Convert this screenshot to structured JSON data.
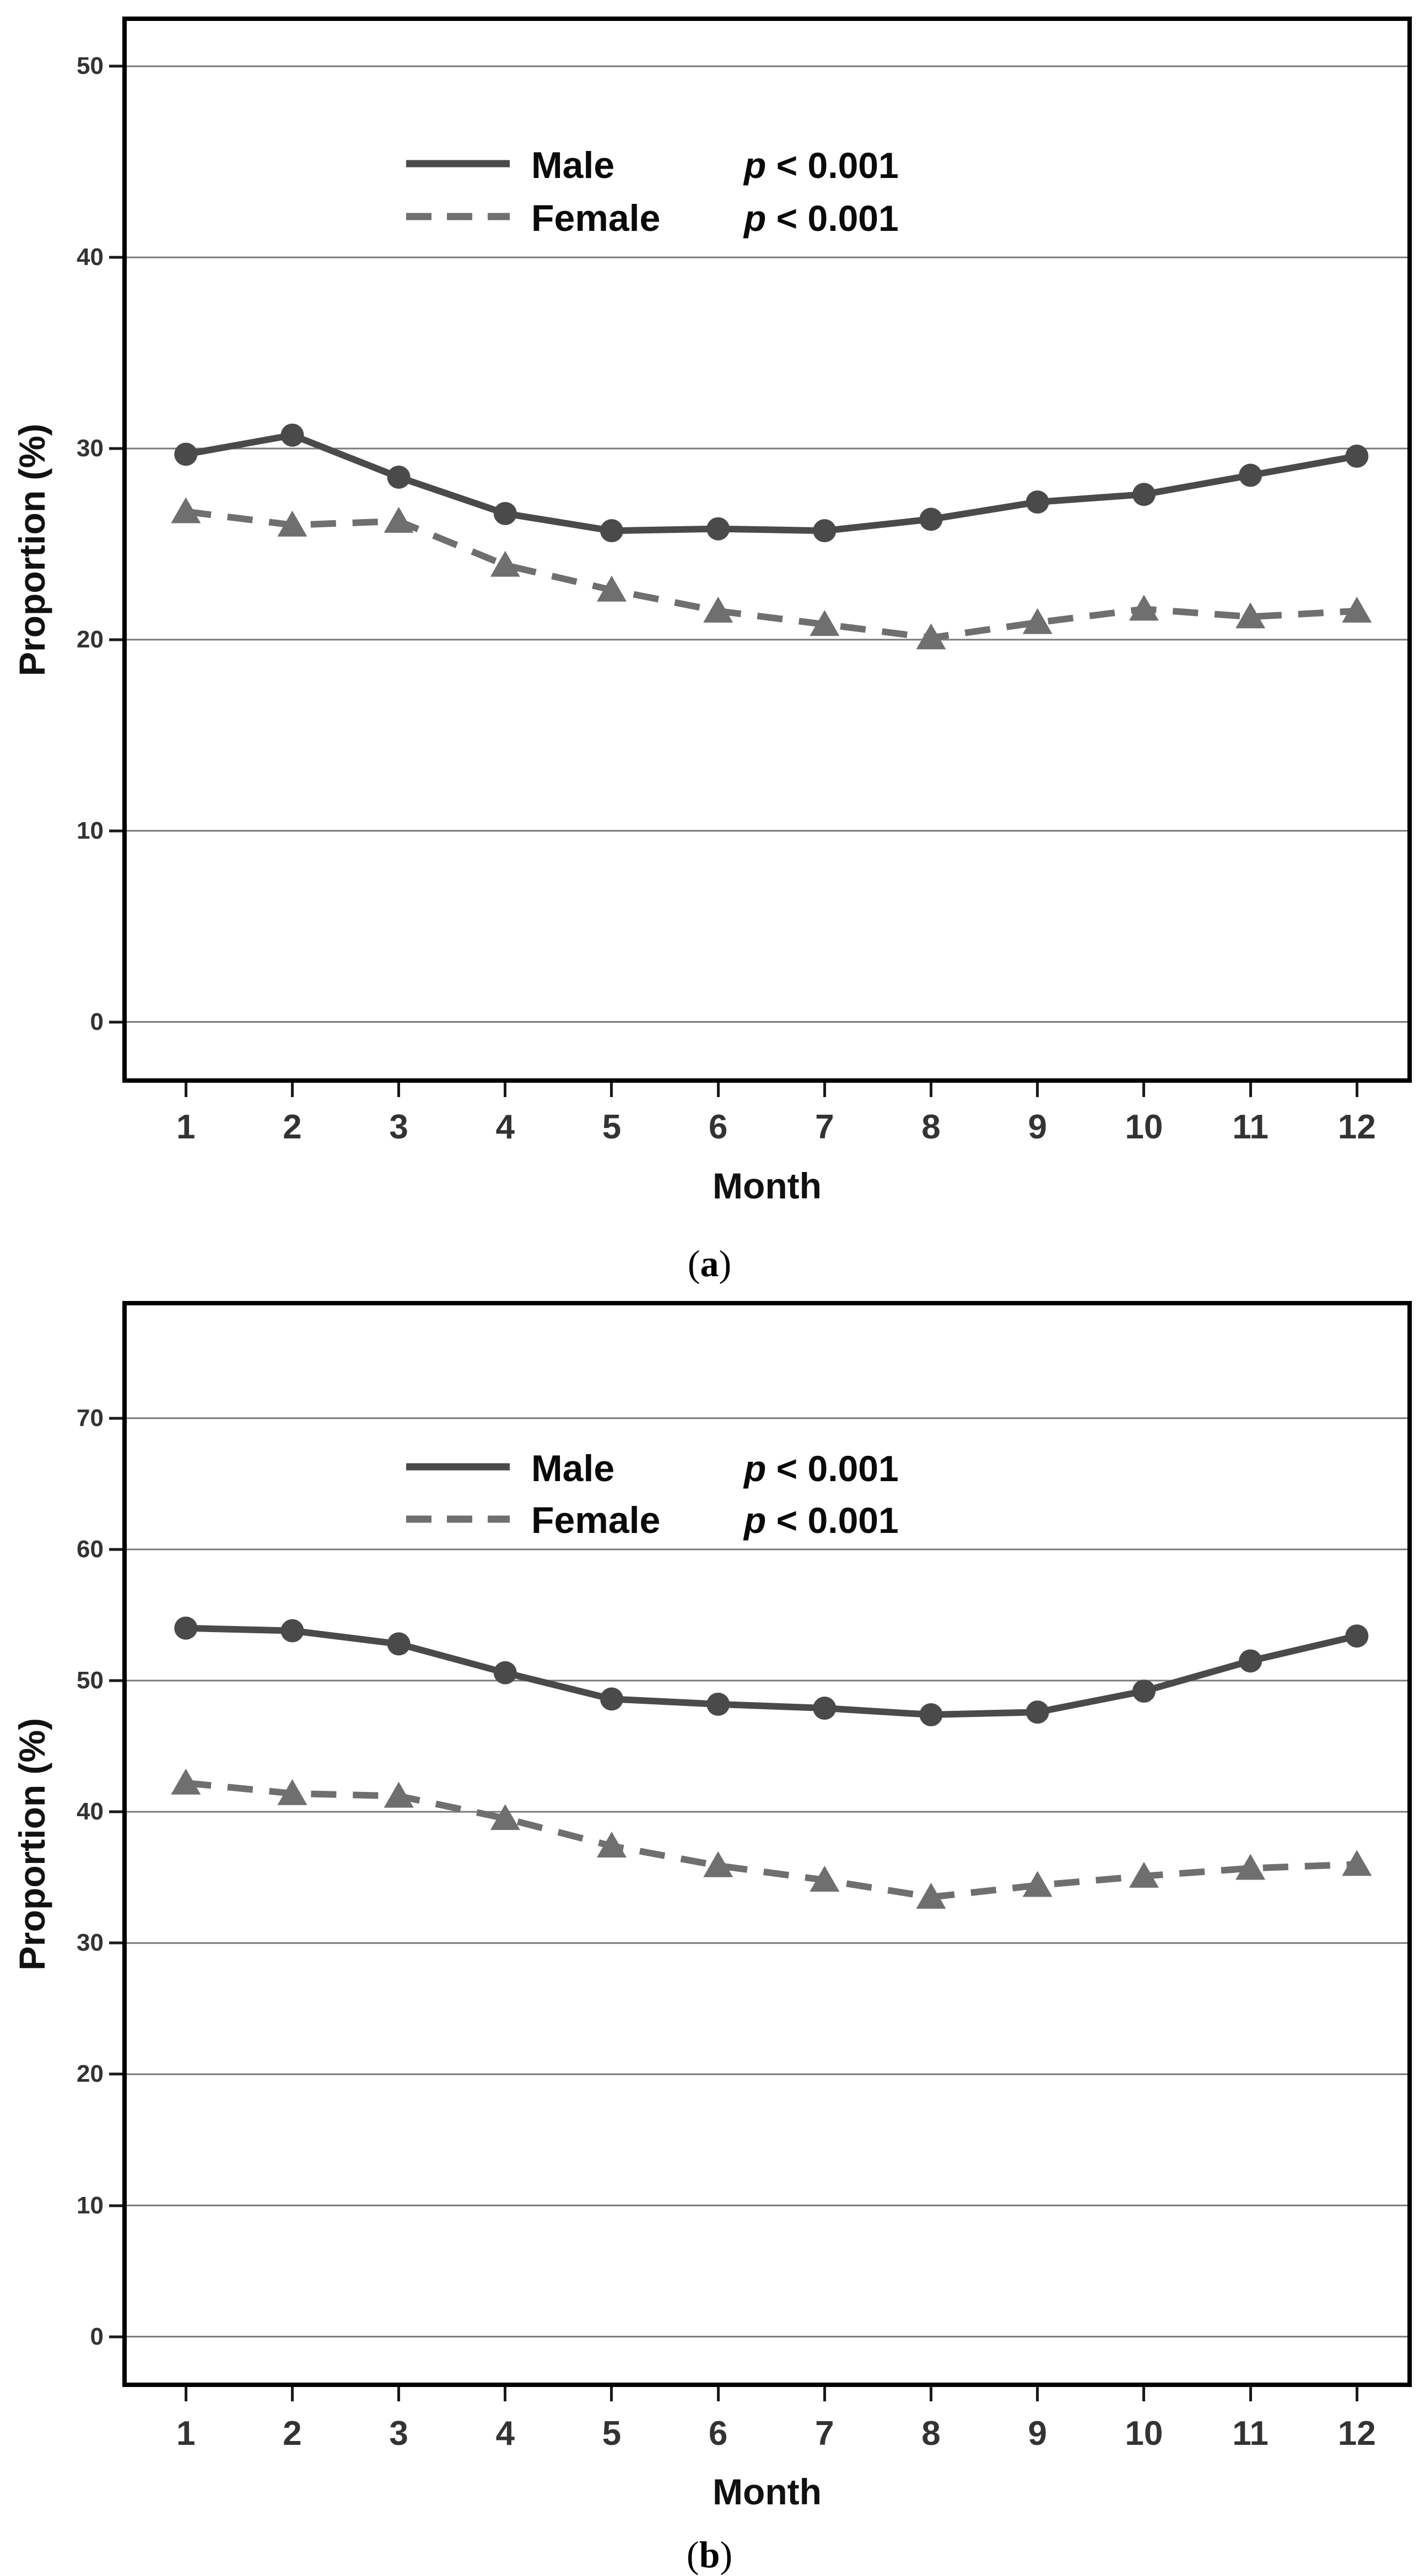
{
  "figure": {
    "description": "Two-panel line figure of monthly proportions by sex",
    "background": "#ffffff"
  },
  "chart_data": [
    {
      "id": "a",
      "type": "line",
      "panel_caption": {
        "open": "(",
        "letter": "a",
        "close": ")"
      },
      "xlabel": "Month",
      "ylabel": "Proportion (%)",
      "x_categories": [
        "1",
        "2",
        "3",
        "4",
        "5",
        "6",
        "7",
        "8",
        "9",
        "10",
        "11",
        "12"
      ],
      "y_ticks": [
        "0",
        "10",
        "20",
        "30",
        "40",
        "50"
      ],
      "ylim": [
        -2.95,
        52.37
      ],
      "grid": true,
      "legend_position": "upper left inside",
      "series": [
        {
          "name": "Male",
          "p_italic": "p",
          "p_rest": " < 0.001",
          "line_style": "solid",
          "marker": "circle",
          "color": "#4a4a4a",
          "values": [
            29.7,
            30.7,
            28.5,
            26.6,
            25.7,
            25.8,
            25.7,
            26.3,
            27.2,
            27.6,
            28.6,
            29.6
          ]
        },
        {
          "name": "Female",
          "p_italic": "p",
          "p_rest": " < 0.001",
          "line_style": "dashed",
          "marker": "triangle",
          "color": "#6f6f6f",
          "values": [
            26.7,
            26.0,
            26.2,
            23.9,
            22.6,
            21.5,
            20.8,
            20.1,
            20.9,
            21.6,
            21.2,
            21.5
          ]
        }
      ]
    },
    {
      "id": "b",
      "type": "line",
      "panel_caption": {
        "open": "(",
        "letter": "b",
        "close": ")"
      },
      "xlabel": "Month",
      "ylabel": "Proportion (%)",
      "x_categories": [
        "1",
        "2",
        "3",
        "4",
        "5",
        "6",
        "7",
        "8",
        "9",
        "10",
        "11",
        "12"
      ],
      "y_ticks": [
        "0",
        "10",
        "20",
        "30",
        "40",
        "50",
        "60",
        "70"
      ],
      "ylim": [
        -3.5,
        78.6
      ],
      "grid": true,
      "legend_position": "upper left inside",
      "series": [
        {
          "name": "Male",
          "p_italic": "p",
          "p_rest": " < 0.001",
          "line_style": "solid",
          "marker": "circle",
          "color": "#4a4a4a",
          "values": [
            54.0,
            53.8,
            52.8,
            50.6,
            48.6,
            48.2,
            47.9,
            47.4,
            47.6,
            49.2,
            51.5,
            53.4
          ]
        },
        {
          "name": "Female",
          "p_italic": "p",
          "p_rest": " < 0.001",
          "line_style": "dashed",
          "marker": "triangle",
          "color": "#6f6f6f",
          "values": [
            42.2,
            41.4,
            41.2,
            39.5,
            37.4,
            35.9,
            34.8,
            33.5,
            34.4,
            35.1,
            35.7,
            36.0
          ]
        }
      ]
    }
  ],
  "style": {
    "male_color": "#4a4a4a",
    "female_color": "#6f6f6f",
    "grid_color": "#7a7a7a",
    "axis_border_color": "#000000",
    "tick_color": "#1a1a1a",
    "tick_label_color": "#333333",
    "title_color": "#111111",
    "legend_text_color": "#0a0a0a"
  }
}
